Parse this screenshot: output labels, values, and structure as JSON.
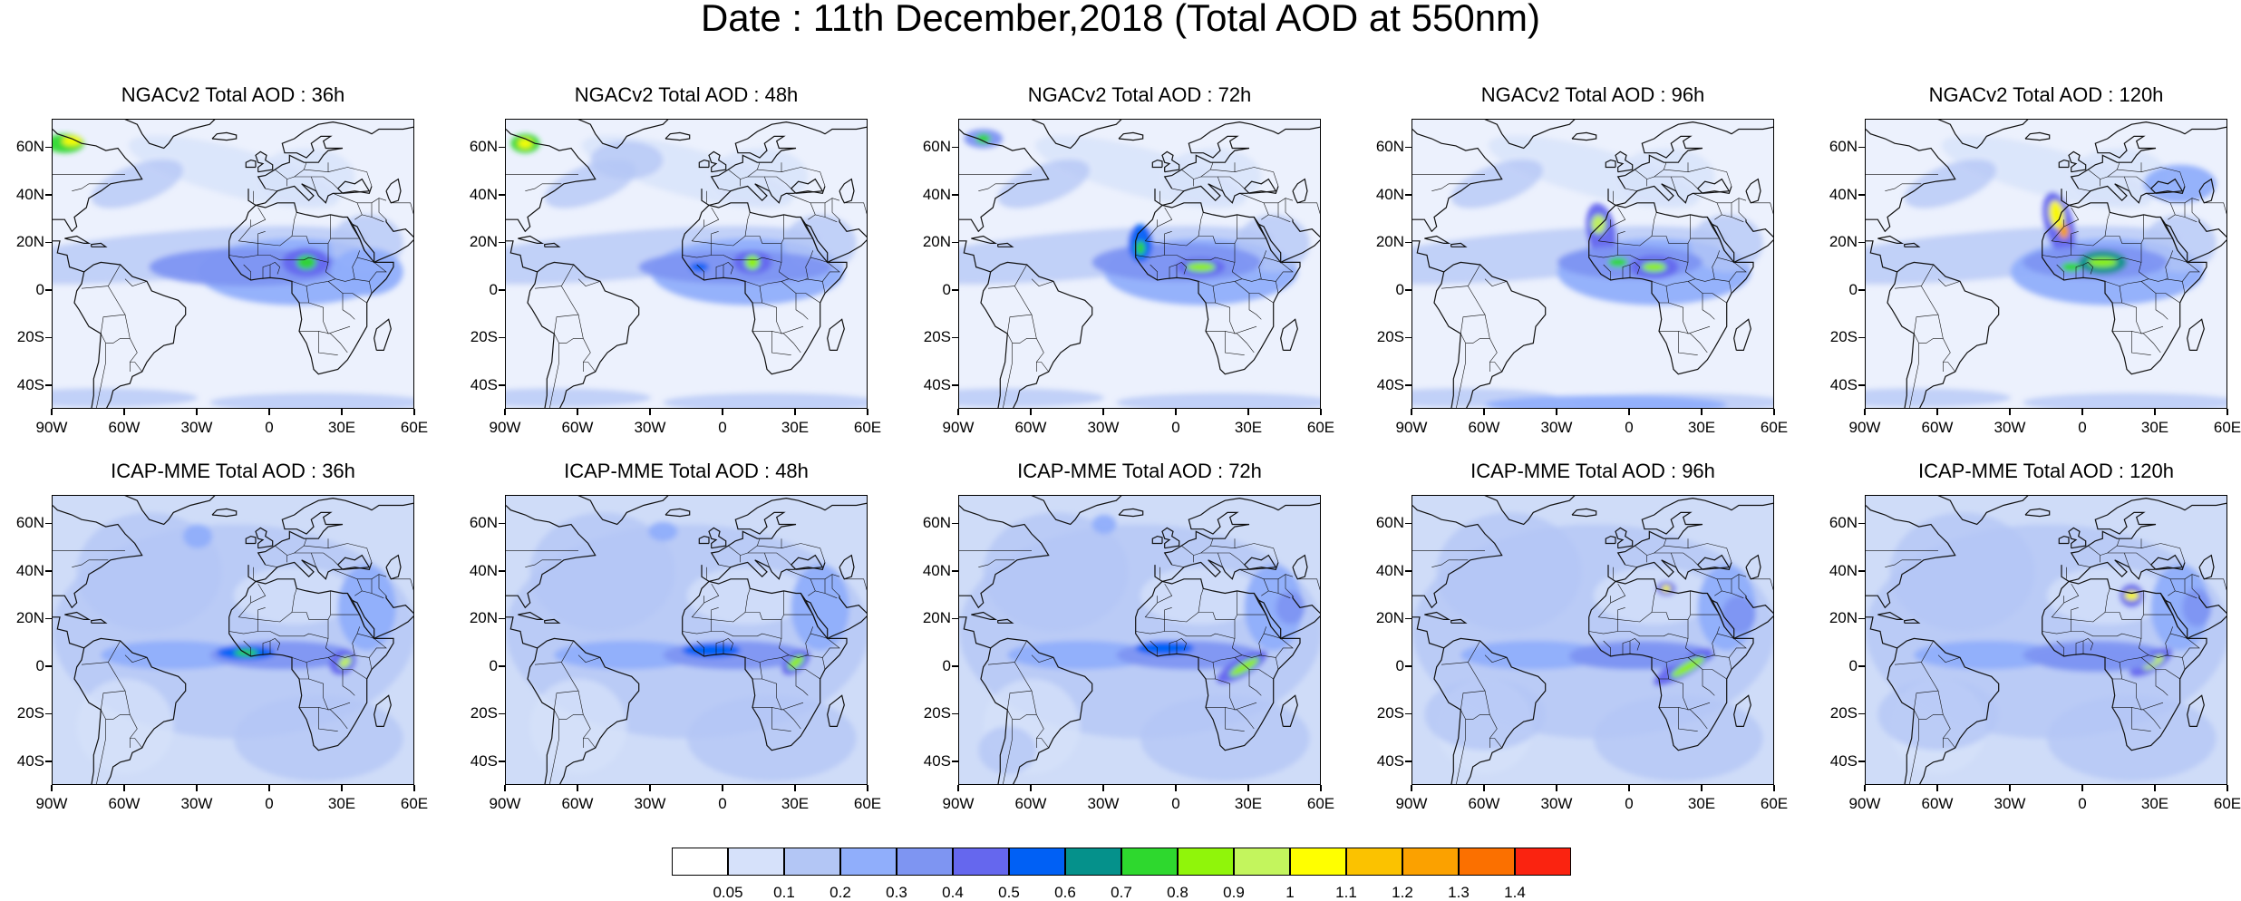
{
  "title": "Date : 11th December,2018 (Total AOD at 550nm)",
  "lat_labels": [
    "60N",
    "40N",
    "20N",
    "0",
    "20S",
    "40S"
  ],
  "lat_values": [
    60,
    40,
    20,
    0,
    -20,
    -40
  ],
  "lon_labels": [
    "90W",
    "60W",
    "30W",
    "0",
    "30E",
    "60E"
  ],
  "lon_values": [
    -90,
    -60,
    -30,
    0,
    30,
    60
  ],
  "map_extent": {
    "lon": [
      -90,
      60
    ],
    "lat": [
      -50,
      72
    ]
  },
  "panels": [
    {
      "title": "NGACv2 Total AOD : 36h",
      "model": "NGACv2",
      "lead": 36
    },
    {
      "title": "NGACv2 Total AOD : 48h",
      "model": "NGACv2",
      "lead": 48
    },
    {
      "title": "NGACv2 Total AOD : 72h",
      "model": "NGACv2",
      "lead": 72
    },
    {
      "title": "NGACv2 Total AOD : 96h",
      "model": "NGACv2",
      "lead": 96
    },
    {
      "title": "NGACv2 Total AOD : 120h",
      "model": "NGACv2",
      "lead": 120
    },
    {
      "title": "ICAP-MME Total AOD : 36h",
      "model": "ICAP-MME",
      "lead": 36
    },
    {
      "title": "ICAP-MME Total AOD : 48h",
      "model": "ICAP-MME",
      "lead": 48
    },
    {
      "title": "ICAP-MME Total AOD : 72h",
      "model": "ICAP-MME",
      "lead": 72
    },
    {
      "title": "ICAP-MME Total AOD : 96h",
      "model": "ICAP-MME",
      "lead": 96
    },
    {
      "title": "ICAP-MME Total AOD : 120h",
      "model": "ICAP-MME",
      "lead": 120
    }
  ],
  "colorbar": {
    "labels": [
      "0.05",
      "0.1",
      "0.2",
      "0.3",
      "0.4",
      "0.5",
      "0.6",
      "0.7",
      "0.8",
      "0.9",
      "1",
      "1.1",
      "1.2",
      "1.3",
      "1.4"
    ],
    "colors": [
      "#ffffff",
      "#d6e1fa",
      "#b3c6f5",
      "#90aefb",
      "#7e95f2",
      "#6567ee",
      "#0060f5",
      "#05918b",
      "#2ed82e",
      "#90f50a",
      "#c3f55d",
      "#ffff00",
      "#fbc200",
      "#fba100",
      "#fb7000",
      "#fa2310"
    ]
  }
}
